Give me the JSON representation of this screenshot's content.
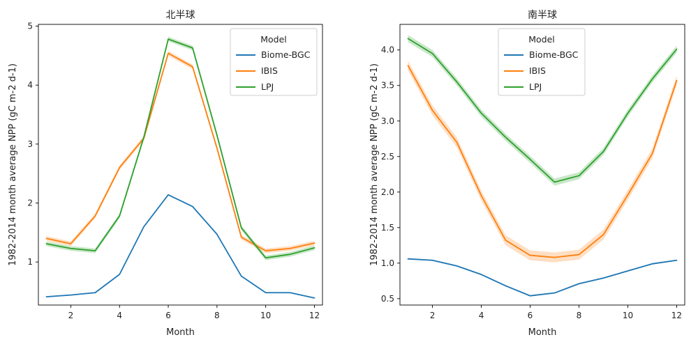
{
  "chart_data": [
    {
      "type": "line",
      "title": "北半球",
      "xlabel": "Month",
      "ylabel": "1982-2014 month average NPP (gC m-2 d-1)",
      "x": [
        1,
        2,
        3,
        4,
        5,
        6,
        7,
        8,
        9,
        10,
        11,
        12
      ],
      "xlim": [
        0.67,
        12.33
      ],
      "ylim": [
        0.27,
        5.03
      ],
      "xticks": [
        2,
        4,
        6,
        8,
        10,
        12
      ],
      "yticks": [
        1,
        2,
        3,
        4,
        5
      ],
      "grid": false,
      "legend": {
        "title": "Model",
        "position": "top-right"
      },
      "series": [
        {
          "name": "Biome-BGC",
          "color": "#1f77b4",
          "values": [
            0.41,
            0.44,
            0.48,
            0.79,
            1.6,
            2.14,
            1.94,
            1.47,
            0.76,
            0.48,
            0.48,
            0.39
          ],
          "band": 0.01
        },
        {
          "name": "IBIS",
          "color": "#ff7f0e",
          "values": [
            1.4,
            1.31,
            1.78,
            2.6,
            3.1,
            4.54,
            4.31,
            2.93,
            1.42,
            1.19,
            1.23,
            1.32
          ],
          "band": 0.04
        },
        {
          "name": "LPJ",
          "color": "#2ca02c",
          "values": [
            1.31,
            1.23,
            1.19,
            1.78,
            3.12,
            4.78,
            4.63,
            3.15,
            1.58,
            1.07,
            1.13,
            1.24
          ],
          "band": 0.04
        }
      ]
    },
    {
      "type": "line",
      "title": "南半球",
      "xlabel": "Month",
      "ylabel": "1982-2014 month average NPP (gC m-2 d-1)",
      "x": [
        1,
        2,
        3,
        4,
        5,
        6,
        7,
        8,
        9,
        10,
        11,
        12
      ],
      "xlim": [
        0.67,
        12.33
      ],
      "ylim": [
        0.41,
        4.36
      ],
      "xticks": [
        2,
        4,
        6,
        8,
        10,
        12
      ],
      "yticks": [
        0.5,
        1.0,
        1.5,
        2.0,
        2.5,
        3.0,
        3.5,
        4.0
      ],
      "ytick_labels": [
        "0.5",
        "1.0",
        "1.5",
        "2.0",
        "2.5",
        "3.0",
        "3.5",
        "4.0"
      ],
      "grid": false,
      "legend": {
        "title": "Model",
        "position": "top-center"
      },
      "series": [
        {
          "name": "Biome-BGC",
          "color": "#1f77b4",
          "values": [
            1.06,
            1.04,
            0.96,
            0.84,
            0.68,
            0.54,
            0.58,
            0.71,
            0.79,
            0.89,
            0.99,
            1.04
          ],
          "band": 0.01
        },
        {
          "name": "IBIS",
          "color": "#ff7f0e",
          "values": [
            3.78,
            3.15,
            2.7,
            1.95,
            1.32,
            1.11,
            1.08,
            1.12,
            1.4,
            1.96,
            2.54,
            3.57
          ],
          "band": 0.07
        },
        {
          "name": "LPJ",
          "color": "#2ca02c",
          "values": [
            4.16,
            3.95,
            3.55,
            3.11,
            2.77,
            2.46,
            2.14,
            2.23,
            2.57,
            3.11,
            3.59,
            4.01
          ],
          "band": 0.05
        }
      ]
    }
  ]
}
